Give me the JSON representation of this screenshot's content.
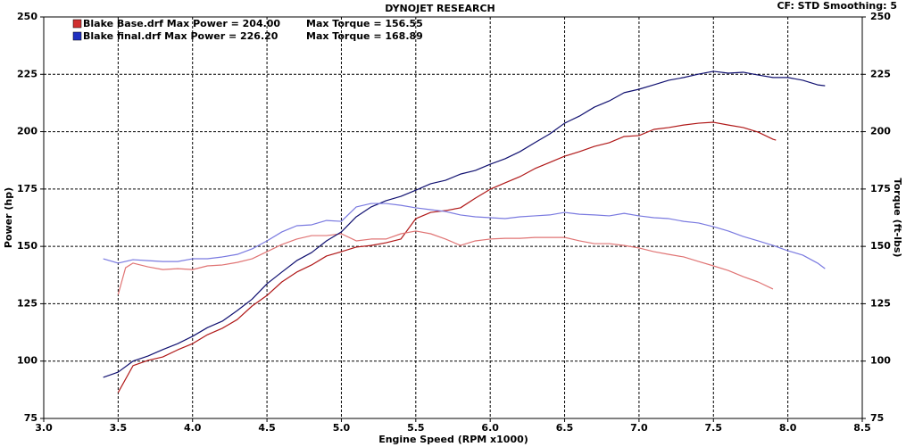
{
  "chart_data": {
    "type": "line",
    "title": "DYNOJET RESEARCH",
    "subtitle": "CF: STD  Smoothing: 5",
    "x_label": "Engine Speed (RPM x1000)",
    "y_label": "Power (hp)",
    "y2_label": "Torque (ft-lbs)",
    "grid": true,
    "legend": [
      {
        "power": "Blake Base.drf Max Power = 204.00",
        "torque": "Max Torque = 156.55",
        "color": "#d03030"
      },
      {
        "power": "Blake final.drf Max Power = 226.20",
        "torque": "Max Torque = 168.89",
        "color": "#2030c0"
      }
    ],
    "xlim": [
      3,
      8.5
    ],
    "xticks": [
      {
        "value": 3,
        "label": "3.0"
      },
      3.5,
      {
        "value": 4,
        "label": "4.0"
      },
      4.5,
      {
        "value": 5,
        "label": "5.0"
      },
      5.5,
      {
        "value": 6,
        "label": "6.0"
      },
      6.5,
      {
        "value": 7,
        "label": "7.0"
      },
      7.5,
      {
        "value": 8,
        "label": "8.0"
      },
      8.5
    ],
    "ylim": [
      75,
      250
    ],
    "yticks": [
      75,
      100,
      125,
      150,
      175,
      200,
      225,
      250
    ],
    "y2lim": [
      75,
      250
    ],
    "y2ticks": [
      75,
      100,
      125,
      150,
      175,
      200,
      225,
      250
    ],
    "series": [
      {
        "color": "#b01818",
        "x": [
          3.5,
          3.6,
          3.7,
          3.8,
          3.9,
          4.0,
          4.1,
          4.2,
          4.3,
          4.4,
          4.5,
          4.6,
          4.7,
          4.8,
          4.9,
          5.0,
          5.1,
          5.2,
          5.3,
          5.4,
          5.5,
          5.6,
          5.7,
          5.8,
          5.9,
          6.0,
          6.1,
          6.2,
          6.3,
          6.4,
          6.5,
          6.6,
          6.7,
          6.8,
          6.9,
          7.0,
          7.1,
          7.2,
          7.3,
          7.4,
          7.5,
          7.6,
          7.7,
          7.8,
          7.9,
          7.92
        ],
        "values": [
          86.3,
          98,
          100.3,
          101.8,
          104.9,
          107.6,
          111.5,
          114.3,
          118.1,
          124,
          128.6,
          134.5,
          138.8,
          141.9,
          145.8,
          147.7,
          149.7,
          150.4,
          151.6,
          153.2,
          162.1,
          164.8,
          165.6,
          166.8,
          171,
          174.9,
          177.7,
          180.4,
          183.9,
          186.6,
          189.3,
          191.3,
          193.6,
          195.2,
          197.9,
          198.3,
          201,
          201.8,
          202.9,
          203.7,
          204.1,
          202.9,
          201.8,
          199.8,
          196.7,
          196.3
        ]
      },
      {
        "color": "#e07474",
        "axis": "y2",
        "x": [
          3.5,
          3.55,
          3.6,
          3.7,
          3.8,
          3.9,
          4.0,
          4.1,
          4.2,
          4.3,
          4.4,
          4.5,
          4.6,
          4.7,
          4.8,
          4.9,
          5.0,
          5.1,
          5.2,
          5.3,
          5.4,
          5.5,
          5.6,
          5.7,
          5.8,
          5.9,
          6.0,
          6.1,
          6.2,
          6.3,
          6.4,
          6.5,
          6.6,
          6.7,
          6.8,
          6.9,
          7.0,
          7.1,
          7.2,
          7.3,
          7.4,
          7.5,
          7.6,
          7.7,
          7.8,
          7.9
        ],
        "values": [
          129,
          140.7,
          142.7,
          141.1,
          139.9,
          140.3,
          139.9,
          141.5,
          141.9,
          143,
          144.6,
          147.7,
          150.8,
          153.2,
          154.7,
          154.7,
          155.5,
          152.4,
          153.2,
          153.2,
          155.5,
          156.7,
          155.5,
          153.2,
          150.4,
          152.4,
          153.2,
          153.5,
          153.5,
          153.9,
          153.9,
          153.9,
          152.4,
          151.2,
          151.2,
          150.4,
          149.3,
          147.7,
          146.5,
          145.4,
          143.4,
          141.5,
          139.5,
          136.8,
          134.5,
          131.4
        ]
      },
      {
        "color": "#101070",
        "x": [
          3.4,
          3.5,
          3.6,
          3.7,
          3.8,
          3.9,
          4.0,
          4.1,
          4.2,
          4.3,
          4.4,
          4.5,
          4.6,
          4.7,
          4.8,
          4.9,
          5.0,
          5.1,
          5.2,
          5.3,
          5.4,
          5.5,
          5.6,
          5.7,
          5.8,
          5.9,
          6.0,
          6.1,
          6.2,
          6.3,
          6.4,
          6.5,
          6.6,
          6.7,
          6.8,
          6.9,
          7.0,
          7.1,
          7.2,
          7.3,
          7.4,
          7.5,
          7.6,
          7.7,
          7.8,
          7.9,
          8.0,
          8.1,
          8.2,
          8.25
        ],
        "values": [
          92.9,
          95.2,
          100,
          102.2,
          105,
          107.6,
          110.8,
          114.6,
          117.4,
          122,
          127,
          133.7,
          138.8,
          143.8,
          147.3,
          152.4,
          156.3,
          162.9,
          167.2,
          169.9,
          171.8,
          174.5,
          177.3,
          178.8,
          181.5,
          183.1,
          185.8,
          188.2,
          191.3,
          195.2,
          199,
          203.7,
          206.8,
          210.7,
          213.4,
          217,
          218.5,
          220.4,
          222.4,
          223.6,
          225.1,
          226.3,
          225.5,
          225.9,
          224.7,
          223.6,
          223.6,
          222.4,
          220.4,
          220
        ]
      },
      {
        "color": "#7a7ae0",
        "axis": "y2",
        "x": [
          3.4,
          3.5,
          3.6,
          3.7,
          3.8,
          3.9,
          4.0,
          4.1,
          4.2,
          4.3,
          4.4,
          4.5,
          4.6,
          4.7,
          4.8,
          4.9,
          5.0,
          5.1,
          5.2,
          5.3,
          5.4,
          5.5,
          5.6,
          5.7,
          5.8,
          5.9,
          6.0,
          6.1,
          6.2,
          6.3,
          6.4,
          6.5,
          6.6,
          6.7,
          6.8,
          6.9,
          7.0,
          7.1,
          7.2,
          7.3,
          7.4,
          7.5,
          7.6,
          7.7,
          7.8,
          7.9,
          8.0,
          8.1,
          8.2,
          8.25
        ],
        "values": [
          144.6,
          142.7,
          144.2,
          143.8,
          143.4,
          143.4,
          144.6,
          144.6,
          145.4,
          146.5,
          148.9,
          152.4,
          156.3,
          159,
          159.4,
          161.3,
          160.9,
          167.2,
          168.7,
          168.7,
          167.9,
          166.8,
          166,
          165.2,
          163.7,
          162.9,
          162.5,
          162.1,
          162.9,
          163.3,
          163.7,
          164.8,
          164,
          163.7,
          163.3,
          164.4,
          163.3,
          162.5,
          162.1,
          160.9,
          160.2,
          158.6,
          156.7,
          154.3,
          152.4,
          150.4,
          148.1,
          146.2,
          142.7,
          140.3
        ]
      }
    ]
  }
}
